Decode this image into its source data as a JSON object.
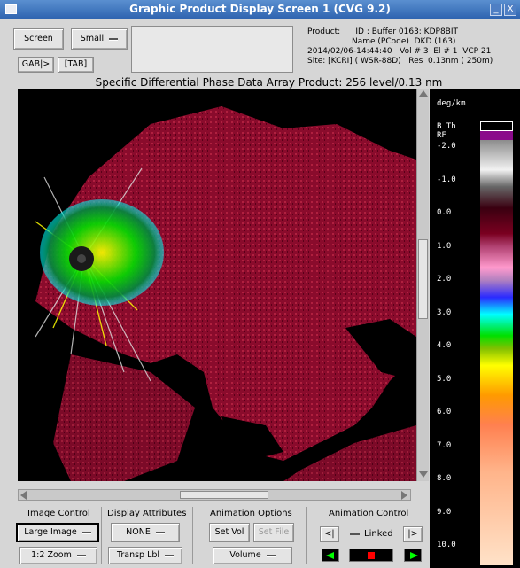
{
  "window": {
    "title": "Graphic Product Display Screen 1 (CVG 9.2)",
    "minimize_glyph": "_",
    "close_glyph": "X"
  },
  "toolbar": {
    "screen_label": "Screen",
    "size_select": "Small",
    "gab_label": "GAB|>",
    "tab_label": "[TAB]"
  },
  "product_info": {
    "line1": "Product:      ID : Buffer 0163: KDP8BIT",
    "line2": "Name (PCode)  DKD (163)",
    "line3": "2014/02/06-14:44:40   Vol # 3  El # 1  VCP 21",
    "line4": "Site: [KCRI] ( WSR-88D)   Res  0.13nm ( 250m)"
  },
  "product_title": "Specific Differential Phase Data Array Product: 256 level/0.13 nm",
  "legend": {
    "unit": "deg/km",
    "codes": [
      "B Th",
      "RF"
    ],
    "ticks": [
      "-2.0",
      "-1.0",
      "0.0",
      "1.0",
      "2.0",
      "3.0",
      "4.0",
      "5.0",
      "6.0",
      "7.0",
      "8.0",
      "9.0",
      "10.0"
    ],
    "colors": {
      "purple": "#8a0a8a",
      "gray_top": "#8c8c8c",
      "white": "#f2f2f2",
      "dark_red": "#3a0010",
      "red": "#7a0020",
      "pink": "#ff9acd",
      "blue": "#2a2aff",
      "cyan": "#00ffff",
      "green": "#00e000",
      "yellow": "#ffff00",
      "orange": "#ff9a00",
      "salmon": "#ffb48a",
      "peach": "#ffe2c8"
    }
  },
  "image_control": {
    "heading": "Image Control",
    "image_select": "Large Image",
    "zoom_select": "1:2 Zoom"
  },
  "display_attributes": {
    "heading": "Display Attributes",
    "attr_select": "NONE",
    "label_select": "Transp Lbl"
  },
  "animation_options": {
    "heading": "Animation Options",
    "set_vol": "Set Vol",
    "set_file": "Set File",
    "mode_select": "Volume"
  },
  "animation_control": {
    "heading": "Animation Control",
    "step_back": "<|",
    "linked": "Linked",
    "step_forward": "|>"
  }
}
